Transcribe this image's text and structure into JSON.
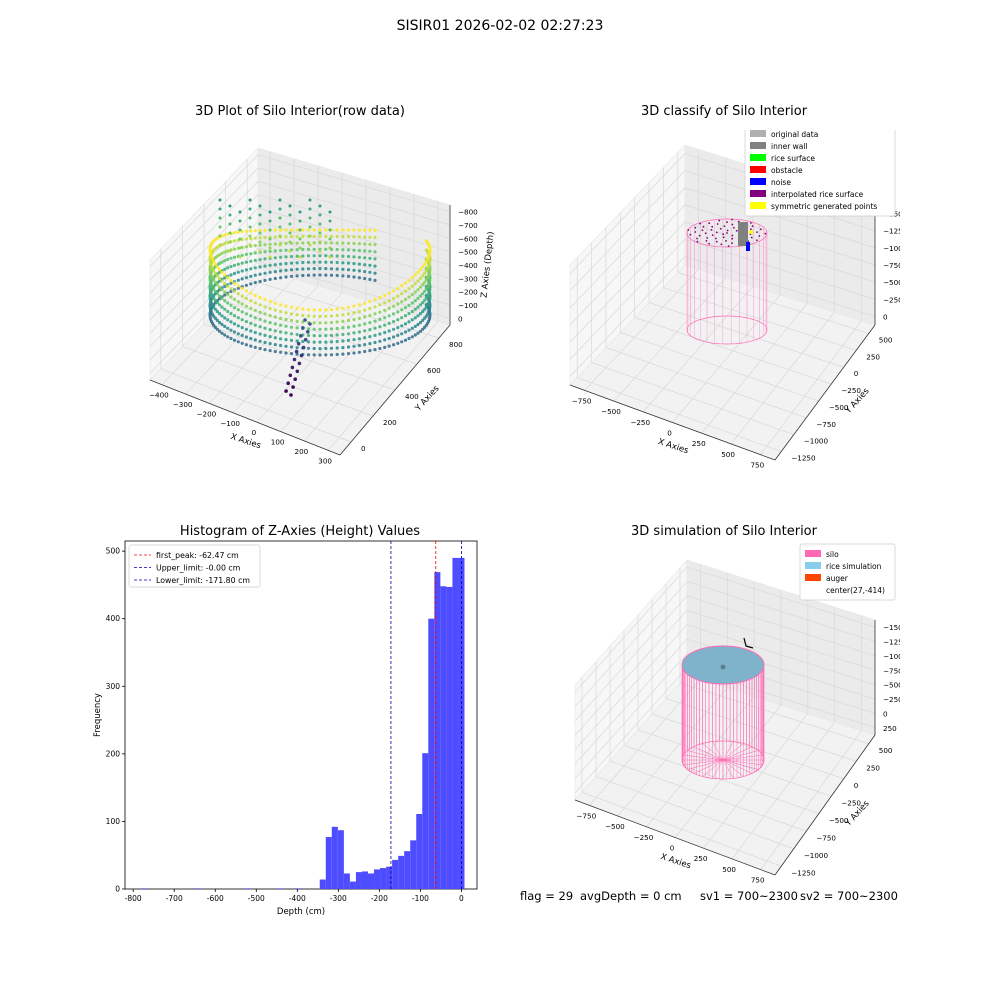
{
  "figure": {
    "suptitle": "SISIR01 2026-02-02 02:27:23",
    "footer": {
      "flag": "flag = 29",
      "avg_depth": "avgDepth = 0 cm",
      "sv1": "sv1 = 700~2300",
      "sv2": "sv2 = 700~2300"
    }
  },
  "chart_data": [
    {
      "type": "scatter3d",
      "title": "3D Plot of Silo Interior(row data)",
      "xlabel": "X Axies",
      "ylabel": "Y Axies",
      "zlabel": "Z Axies (Depth)",
      "xticks": [
        "−400",
        "−300",
        "−200",
        "−100",
        "0",
        "100",
        "200",
        "300"
      ],
      "yticks": [
        "0",
        "200",
        "400",
        "600",
        "800"
      ],
      "zticks": [
        "0",
        "−100",
        "−200",
        "−300",
        "−400",
        "−500",
        "−600",
        "−700",
        "−800"
      ],
      "colormap": "viridis"
    },
    {
      "type": "scatter3d",
      "title": "3D classify of Silo Interior",
      "xlabel": "X Axies",
      "ylabel": "Y Axies",
      "zlabel": "Z Axies (Depth)",
      "xticks": [
        "−750",
        "−500",
        "−250",
        "0",
        "250",
        "500",
        "750"
      ],
      "yticks": [
        "−1250",
        "−1000",
        "−750",
        "−500",
        "−250",
        "0",
        "250",
        "500"
      ],
      "zticks": [
        "0",
        "−250",
        "−500",
        "−750",
        "−1000",
        "−1250",
        "−1500"
      ],
      "legend_position": "top-right",
      "legend": [
        {
          "label": "original data",
          "color": "#b0b0b0"
        },
        {
          "label": "inner wall",
          "color": "#808080"
        },
        {
          "label": "rice surface",
          "color": "#00ff00"
        },
        {
          "label": "obstacle",
          "color": "#ff0000"
        },
        {
          "label": "noise",
          "color": "#0000ff"
        },
        {
          "label": "interpolated rice surface",
          "color": "#800080"
        },
        {
          "label": "symmetric generated points",
          "color": "#ffff00"
        }
      ]
    },
    {
      "type": "bar",
      "title": "Histogram of Z-Axies (Height) Values",
      "xlabel": "Depth (cm)",
      "ylabel": "Frequency",
      "xlim": [
        -820,
        38
      ],
      "ylim": [
        0,
        515
      ],
      "xticks": [
        -800,
        -700,
        -600,
        -500,
        -400,
        -300,
        -200,
        -100,
        0
      ],
      "yticks": [
        0,
        100,
        200,
        300,
        400,
        500
      ],
      "bar_color": "#4d4dff",
      "bin_width": 14.7,
      "bins_left": [
        -780,
        -650,
        -530,
        -448,
        -404,
        -360,
        -345.3,
        -330.6,
        -315.9,
        -301.2,
        -286.5,
        -271.8,
        -257.1,
        -242.4,
        -227.7,
        -213,
        -198.3,
        -183.6,
        -168.9,
        -154.2,
        -139.5,
        -124.8,
        -110.1,
        -95.4,
        -80.7,
        -66,
        -51.3,
        -36.6,
        -21.9,
        -7.2
      ],
      "counts": [
        1,
        1,
        1,
        1,
        1,
        0,
        14,
        77,
        92,
        87,
        23,
        11,
        25,
        26,
        23,
        29,
        31,
        33,
        43,
        49,
        56,
        72,
        111,
        201,
        400,
        469,
        448,
        447,
        490,
        490
      ],
      "vlines": [
        {
          "x": -62.47,
          "color": "#ff0000",
          "label": "first_peak: -62.47 cm"
        },
        {
          "x": -0.0,
          "color": "#0000aa",
          "label": "Upper_limit: -0.00 cm"
        },
        {
          "x": -171.8,
          "color": "#0000aa",
          "label": "Lower_limit: -171.80 cm"
        }
      ],
      "legend_position": "top-left"
    },
    {
      "type": "scatter3d",
      "title": "3D simulation of Silo Interior",
      "xlabel": "X Axies",
      "ylabel": "Y Axies",
      "zlabel": "Z Axies (Depth)",
      "xticks": [
        "−750",
        "−500",
        "−250",
        "0",
        "250",
        "500",
        "750"
      ],
      "yticks": [
        "−1250",
        "−1000",
        "−750",
        "−500",
        "−250",
        "0",
        "250",
        "500"
      ],
      "zticks": [
        "250",
        "0",
        "−250",
        "−500",
        "−750",
        "−1000",
        "−1250",
        "−1500"
      ],
      "legend_position": "top-right",
      "legend": [
        {
          "label": "silo",
          "color": "#ff69b4",
          "kind": "patch"
        },
        {
          "label": "rice simulation",
          "color": "#87ceeb",
          "kind": "patch"
        },
        {
          "label": "auger",
          "color": "#ff4500",
          "kind": "patch"
        },
        {
          "label": "center(27,-414)",
          "color": "#ffffff",
          "kind": "marker"
        }
      ]
    }
  ]
}
